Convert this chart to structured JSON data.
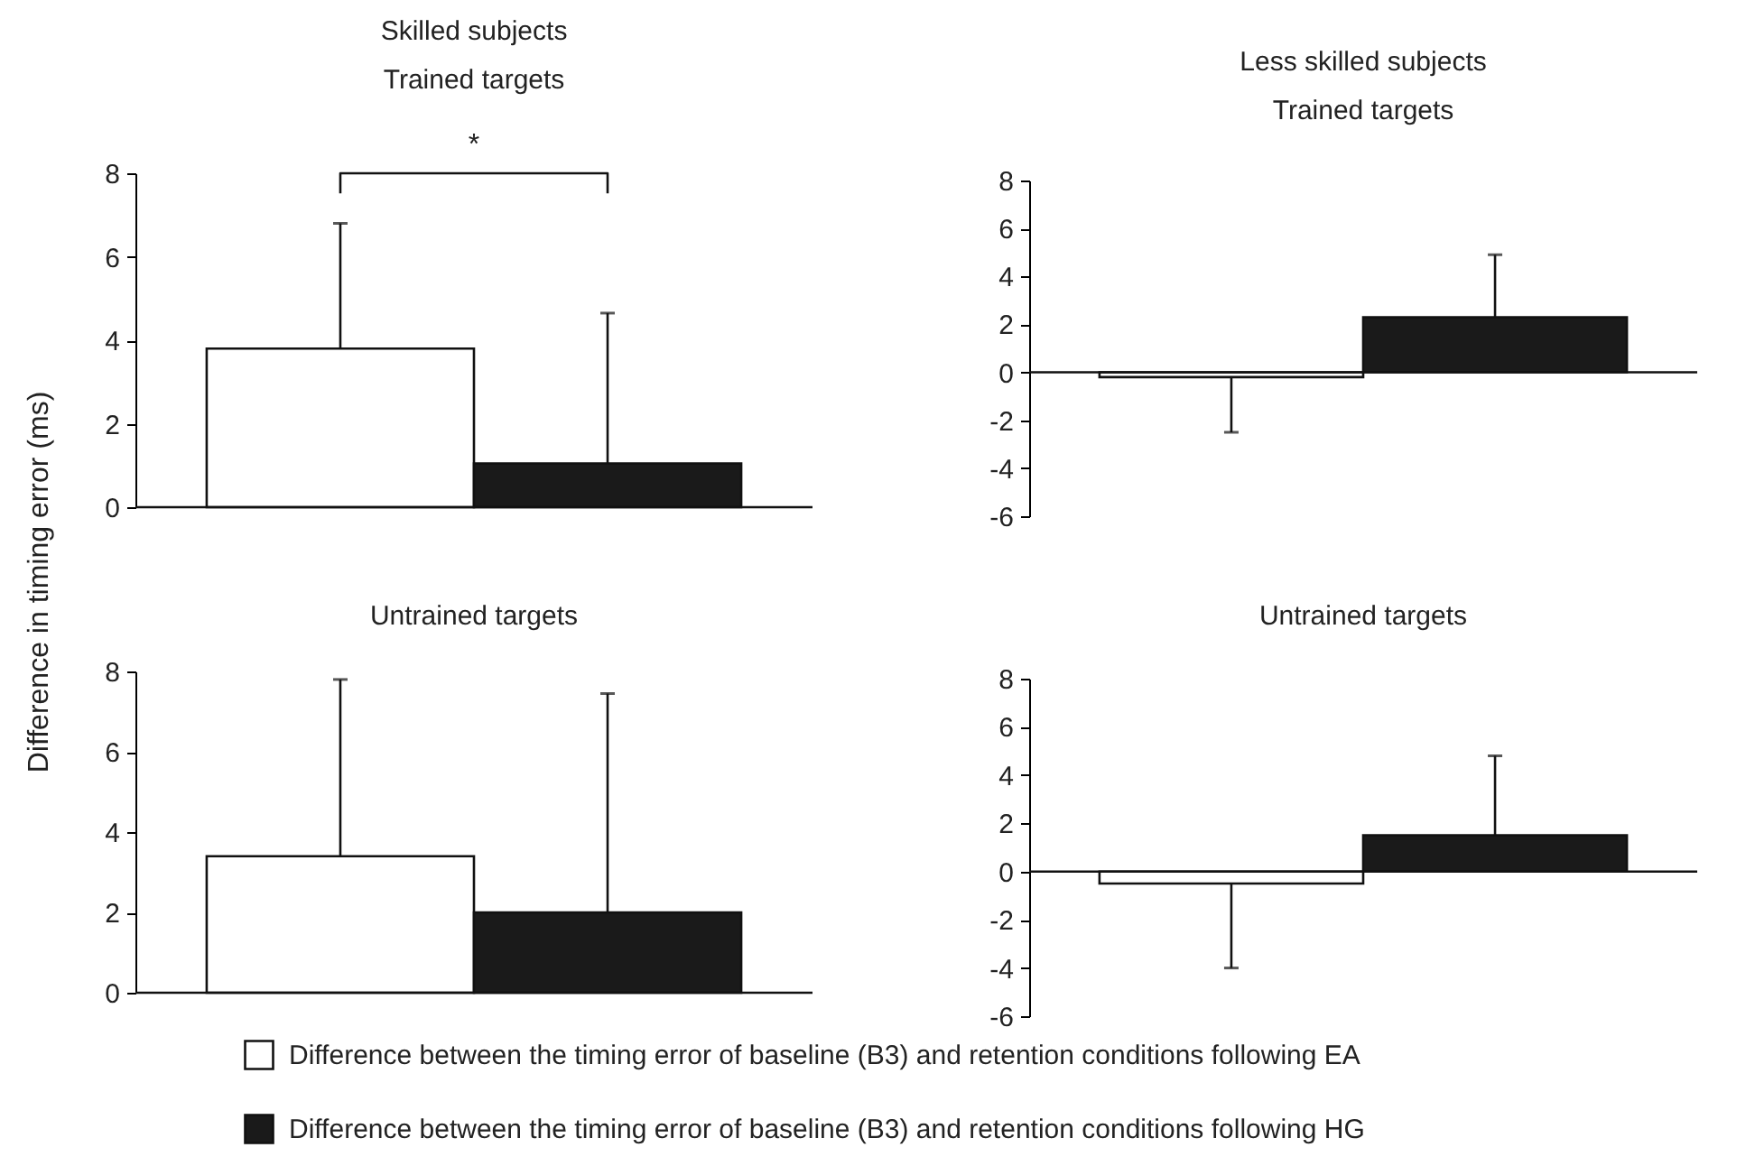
{
  "chart_data": [
    {
      "type": "bar",
      "title": "Skilled subjects",
      "subtitle": "Trained targets",
      "ylabel": "Difference in timing error (ms)",
      "categories": [
        null
      ],
      "ylim": [
        0,
        8
      ],
      "yticks": [
        0,
        2,
        4,
        6,
        8
      ],
      "tick_labels": "y",
      "legend": "bottom",
      "annotations": [
        "*"
      ],
      "series": [
        {
          "name": "Difference between the timing error of baseline (B3) and retention conditions following EA",
          "color": "#ffffff",
          "values": [
            3.8
          ],
          "errors": [
            [
              3.8,
              6.8
            ]
          ]
        },
        {
          "name": "Difference between the timing error of baseline (B3) and retention conditions following HG",
          "color": "#1a1a1a",
          "values": [
            1.05
          ],
          "errors": [
            [
              1.05,
              4.65
            ]
          ]
        }
      ]
    },
    {
      "type": "bar",
      "title": "Less skilled subjects",
      "subtitle": "Trained targets",
      "categories": [
        null
      ],
      "ylim": [
        -6,
        8
      ],
      "yticks": [
        -6,
        -4,
        -2,
        0,
        2,
        4,
        6,
        8
      ],
      "tick_labels": "y",
      "series": [
        {
          "color": "#ffffff",
          "values": [
            -0.2
          ],
          "errors": [
            [
              -2.5,
              -0.2
            ]
          ]
        },
        {
          "color": "#1a1a1a",
          "values": [
            2.3
          ],
          "errors": [
            [
              2.3,
              4.9
            ]
          ]
        }
      ]
    },
    {
      "type": "bar",
      "title": "Untrained targets",
      "categories": [
        null
      ],
      "ylim": [
        0,
        8
      ],
      "yticks": [
        0,
        2,
        4,
        6,
        8
      ],
      "tick_labels": "y",
      "series": [
        {
          "color": "#ffffff",
          "values": [
            3.4
          ],
          "errors": [
            [
              3.4,
              7.8
            ]
          ]
        },
        {
          "color": "#1a1a1a",
          "values": [
            2.0
          ],
          "errors": [
            [
              2.0,
              7.45
            ]
          ]
        }
      ]
    },
    {
      "type": "bar",
      "title": "Untrained targets",
      "categories": [
        null
      ],
      "ylim": [
        -6,
        8
      ],
      "yticks": [
        -6,
        -4,
        -2,
        0,
        2,
        4,
        6,
        8
      ],
      "tick_labels": "y",
      "series": [
        {
          "color": "#ffffff",
          "values": [
            -0.5
          ],
          "errors": [
            [
              -4.0,
              -0.5
            ]
          ]
        },
        {
          "color": "#1a1a1a",
          "values": [
            1.5
          ],
          "errors": [
            [
              1.5,
              4.8
            ]
          ]
        }
      ]
    }
  ]
}
